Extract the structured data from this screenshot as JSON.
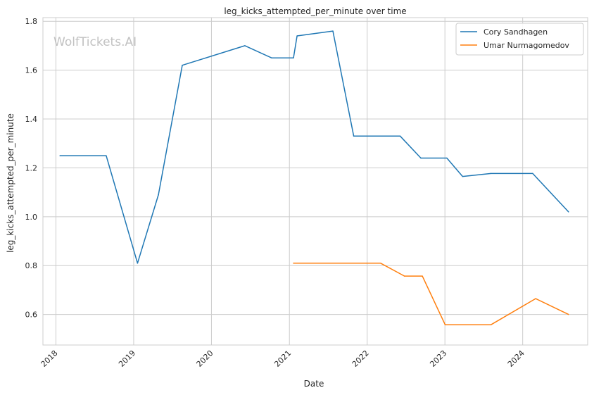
{
  "chart_data": {
    "type": "line",
    "title": "leg_kicks_attempted_per_minute over time",
    "xlabel": "Date",
    "ylabel": "leg_kicks_attempted_per_minute",
    "watermark": "WolfTickets.AI",
    "x_axis_type": "date",
    "xlim": [
      "2017-11-01",
      "2024-11-01"
    ],
    "ylim": [
      0.475,
      1.815
    ],
    "x_ticks": [
      "2018",
      "2019",
      "2020",
      "2021",
      "2022",
      "2023",
      "2024"
    ],
    "y_ticks": [
      "0.6",
      "0.8",
      "1.0",
      "1.2",
      "1.4",
      "1.6",
      "1.8"
    ],
    "grid": true,
    "legend_position": "top-right",
    "series": [
      {
        "name": "Cory Sandhagen",
        "color": "#1f77b4",
        "points": [
          {
            "x": "2018-01-20",
            "y": 1.25
          },
          {
            "x": "2018-08-25",
            "y": 1.25
          },
          {
            "x": "2019-01-19",
            "y": 0.81
          },
          {
            "x": "2019-04-27",
            "y": 1.09
          },
          {
            "x": "2019-08-17",
            "y": 1.62
          },
          {
            "x": "2020-06-06",
            "y": 1.7
          },
          {
            "x": "2020-10-10",
            "y": 1.65
          },
          {
            "x": "2021-01-20",
            "y": 1.65
          },
          {
            "x": "2021-02-06",
            "y": 1.74
          },
          {
            "x": "2021-07-24",
            "y": 1.76
          },
          {
            "x": "2021-10-30",
            "y": 1.33
          },
          {
            "x": "2022-06-05",
            "y": 1.33
          },
          {
            "x": "2022-09-10",
            "y": 1.24
          },
          {
            "x": "2023-01-10",
            "y": 1.24
          },
          {
            "x": "2023-03-25",
            "y": 1.165
          },
          {
            "x": "2023-08-05",
            "y": 1.177
          },
          {
            "x": "2024-02-17",
            "y": 1.177
          },
          {
            "x": "2024-08-03",
            "y": 1.02
          }
        ]
      },
      {
        "name": "Umar Nurmagomedov",
        "color": "#ff7f0e",
        "points": [
          {
            "x": "2021-01-20",
            "y": 0.81
          },
          {
            "x": "2022-03-05",
            "y": 0.81
          },
          {
            "x": "2022-06-25",
            "y": 0.757
          },
          {
            "x": "2022-09-17",
            "y": 0.757
          },
          {
            "x": "2023-01-02",
            "y": 0.558
          },
          {
            "x": "2023-08-05",
            "y": 0.558
          },
          {
            "x": "2024-03-02",
            "y": 0.665
          },
          {
            "x": "2024-08-03",
            "y": 0.6
          }
        ]
      }
    ]
  }
}
